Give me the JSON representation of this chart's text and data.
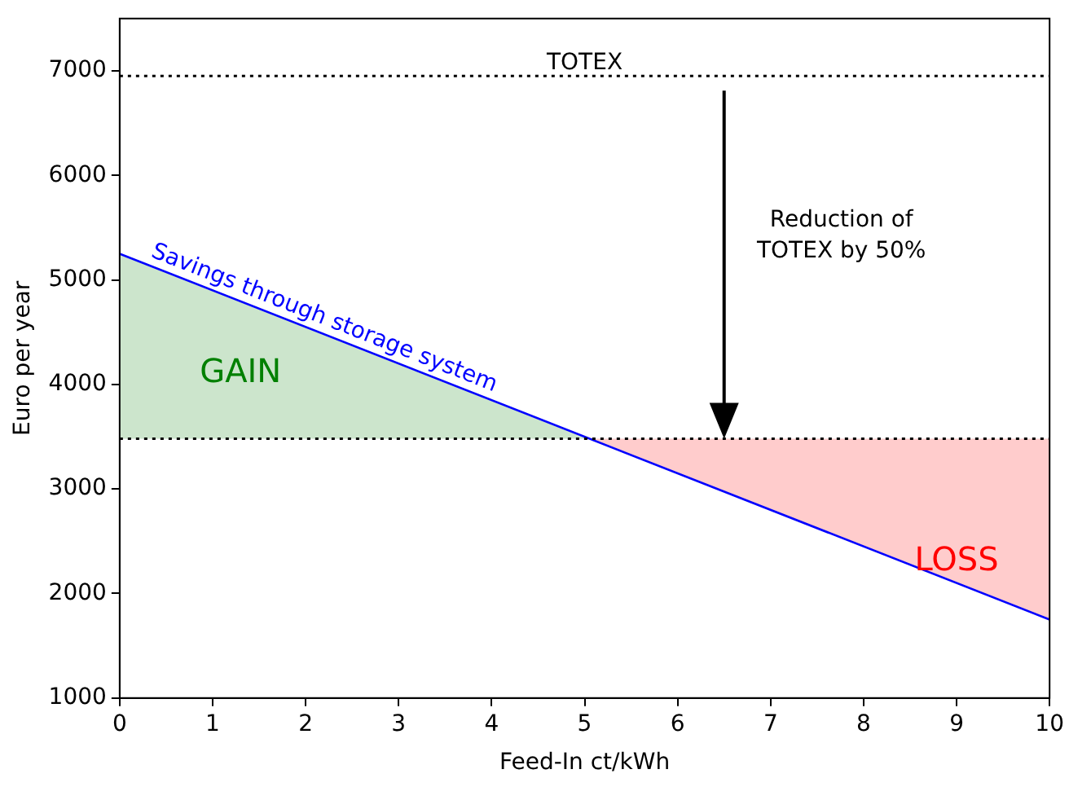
{
  "chart_data": {
    "type": "line",
    "xlabel": "Feed-In ct/kWh",
    "ylabel": "Euro per year",
    "xlim": [
      0,
      10
    ],
    "xticks": [
      0,
      1,
      2,
      3,
      4,
      5,
      6,
      7,
      8,
      9,
      10
    ],
    "ylim": [
      1000,
      7500
    ],
    "yticks": [
      1000,
      2000,
      3000,
      4000,
      5000,
      6000,
      7000
    ],
    "grid": false,
    "legend": false,
    "marker": "none",
    "series": [
      {
        "type": "area",
        "color": "#cce5cc",
        "x": [
          0,
          5.06
        ],
        "values": [
          5250,
          3480
        ]
      },
      {
        "type": "area",
        "color": "#ffcccc",
        "x": [
          5.06,
          10
        ],
        "values": [
          3480,
          1750
        ]
      },
      {
        "name": "Savings through storage system",
        "color": "#0000ff",
        "x": [
          0,
          10
        ],
        "values": [
          5250,
          1750
        ]
      }
    ],
    "ref_lines": [
      {
        "axis": "y",
        "value": 6950,
        "label": "TOTEX",
        "color": "#000000",
        "line_style": "dotted"
      },
      {
        "axis": "y",
        "value": 3480,
        "color": "#000000",
        "line_style": "dotted"
      }
    ],
    "annotations": [
      "GAIN",
      "LOSS",
      "Reduction of\nTOTEX by 50%"
    ]
  }
}
